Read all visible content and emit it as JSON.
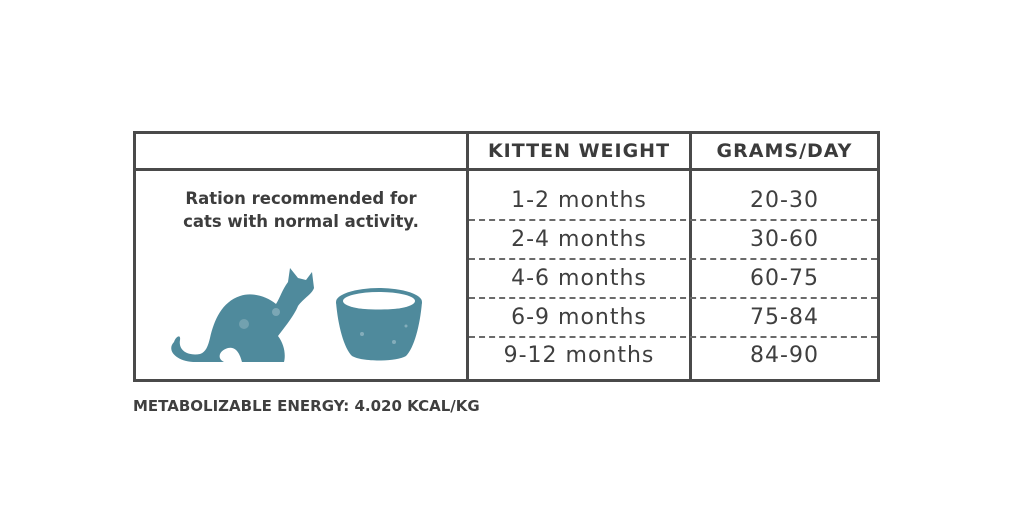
{
  "table": {
    "headers": {
      "kitten_weight": "KITTEN WEIGHT",
      "grams_day": "GRAMS/DAY"
    },
    "ration_text": {
      "line1": "Ration recommended for",
      "line2": "cats with normal activity."
    },
    "rows": [
      {
        "age": "1-2 months",
        "grams": "20-30"
      },
      {
        "age": "2-4 months",
        "grams": "30-60"
      },
      {
        "age": "4-6 months",
        "grams": "60-75"
      },
      {
        "age": "6-9 months",
        "grams": "75-84"
      },
      {
        "age": "9-12 months",
        "grams": "84-90"
      }
    ]
  },
  "footnote": "METABOLIZABLE ENERGY: 4.020 KCAL/KG",
  "illustration": {
    "icons": [
      "cat-icon",
      "food-bowl-icon"
    ],
    "accent_color": "#4f8a9c"
  }
}
